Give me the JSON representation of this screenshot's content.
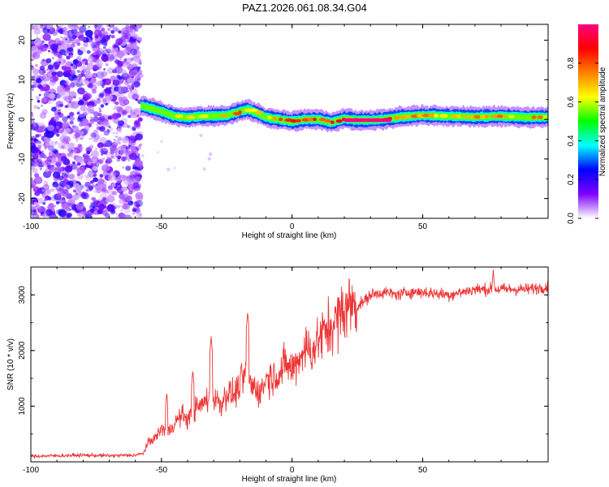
{
  "title": "PAZ1.2026.061.08.34.G04",
  "chart_data": [
    {
      "type": "heatmap",
      "xlabel": "Height of straight line (km)",
      "ylabel": "Frequency (Hz)",
      "xlim": [
        -100,
        98
      ],
      "ylim": [
        -25,
        24
      ],
      "x_ticks": [
        -100,
        -50,
        0,
        50
      ],
      "y_ticks": [
        -20,
        -10,
        0,
        10,
        20
      ],
      "colorbar": {
        "label": "Normalized spectral amplitude",
        "range": [
          0.0,
          1.0
        ],
        "ticks": [
          "0.0",
          "0.2",
          "0.4",
          "0.6",
          "0.8"
        ],
        "colors": [
          "#ffffff",
          "#8000ff",
          "#0000ff",
          "#00ffff",
          "#00ff00",
          "#ffff00",
          "#ff8000",
          "#ff0000",
          "#ff0080"
        ]
      },
      "noise_region_x": [
        -100,
        -58
      ],
      "frequency_track": {
        "x": [
          -58,
          -50,
          -45,
          -40,
          -35,
          -30,
          -25,
          -20,
          -17,
          -13,
          -10,
          -5,
          0,
          5,
          10,
          15,
          20,
          25,
          30,
          35,
          40,
          50,
          60,
          70,
          80,
          90,
          98
        ],
        "y": [
          3.5,
          2.0,
          0.8,
          0.5,
          0.8,
          0.8,
          1.0,
          2.0,
          2.5,
          1.5,
          0.5,
          0.0,
          -0.5,
          0.0,
          0.0,
          -0.8,
          0.2,
          -0.2,
          -0.2,
          0.0,
          0.5,
          1.0,
          0.8,
          0.6,
          0.8,
          0.5,
          0.6
        ],
        "peak_amplitude": [
          0.5,
          0.6,
          0.7,
          0.7,
          0.7,
          0.75,
          0.75,
          0.8,
          0.8,
          0.75,
          0.8,
          0.85,
          0.9,
          0.9,
          0.9,
          0.95,
          0.95,
          1.0,
          1.0,
          1.0,
          0.85,
          0.75,
          0.75,
          0.75,
          0.75,
          0.75,
          0.75
        ]
      }
    },
    {
      "type": "line",
      "xlabel": "Height of straight line (km)",
      "ylabel": "SNR (10 * v/v)",
      "xlim": [
        -100,
        98
      ],
      "ylim": [
        0,
        3500
      ],
      "x_ticks": [
        -100,
        -50,
        0,
        50
      ],
      "y_ticks": [
        1000,
        2000,
        3000
      ],
      "series": [
        {
          "name": "SNR",
          "color": "#ee3333",
          "x": [
            -100,
            -90,
            -80,
            -70,
            -60,
            -57,
            -55,
            -52,
            -50,
            -47,
            -45,
            -42,
            -40,
            -37,
            -35,
            -32,
            -30,
            -27,
            -25,
            -22,
            -20,
            -18,
            -15,
            -12,
            -10,
            -7,
            -5,
            -2,
            0,
            3,
            5,
            8,
            10,
            13,
            15,
            18,
            20,
            23,
            25,
            28,
            30,
            35,
            40,
            45,
            50,
            60,
            70,
            80,
            90,
            98
          ],
          "y": [
            100,
            110,
            120,
            110,
            120,
            150,
            350,
            450,
            600,
            550,
            700,
            850,
            750,
            950,
            1000,
            1150,
            1150,
            1050,
            1250,
            1200,
            1400,
            1550,
            1350,
            1250,
            1500,
            1550,
            1600,
            1750,
            1650,
            1900,
            2050,
            2000,
            2200,
            2350,
            2450,
            2600,
            2750,
            2850,
            2800,
            2900,
            3000,
            3050,
            3000,
            3050,
            3050,
            3000,
            3100,
            3100,
            3100,
            3150
          ]
        }
      ],
      "spikes": [
        {
          "x": -31,
          "y": 2250
        },
        {
          "x": -17,
          "y": 2700
        },
        {
          "x": -38,
          "y": 1650
        },
        {
          "x": -48,
          "y": 1250
        },
        {
          "x": 77,
          "y": 3450
        }
      ]
    }
  ]
}
